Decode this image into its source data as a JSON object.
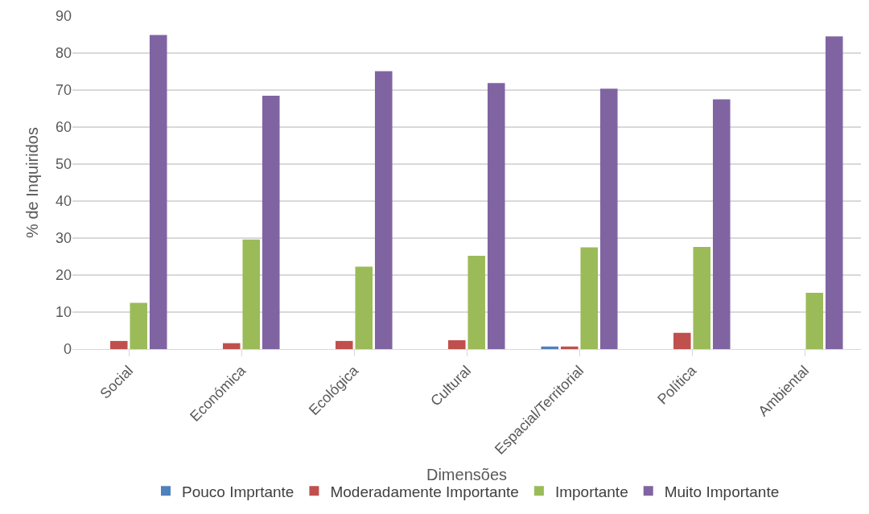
{
  "chart_data": {
    "type": "bar",
    "xlabel": "Dimensões",
    "ylabel": "% de Inquiridos",
    "categories": [
      "Social",
      "Económica",
      "Ecológica",
      "Cultural",
      "Espacial/Territorial",
      "Política",
      "Ambiental"
    ],
    "series": [
      {
        "name": "Pouco Imprtante",
        "color": "#4f81bd",
        "values": [
          0,
          0,
          0,
          0,
          0.7,
          0,
          0
        ]
      },
      {
        "name": "Moderadamente Importante",
        "color": "#c0504d",
        "values": [
          2.2,
          1.6,
          2.2,
          2.4,
          0.7,
          4.4,
          0
        ]
      },
      {
        "name": "Importante",
        "color": "#9bbb59",
        "values": [
          12.5,
          29.6,
          22.3,
          25.2,
          27.5,
          27.6,
          15.2
        ]
      },
      {
        "name": "Muito Importante",
        "color": "#8064a2",
        "values": [
          84.9,
          68.5,
          75.1,
          71.9,
          70.4,
          67.5,
          84.5
        ]
      }
    ],
    "ylim": [
      0,
      90
    ],
    "yticks": [
      0,
      10,
      20,
      30,
      40,
      50,
      60,
      70,
      80,
      90
    ],
    "grid": "y",
    "legend": "bottom"
  }
}
